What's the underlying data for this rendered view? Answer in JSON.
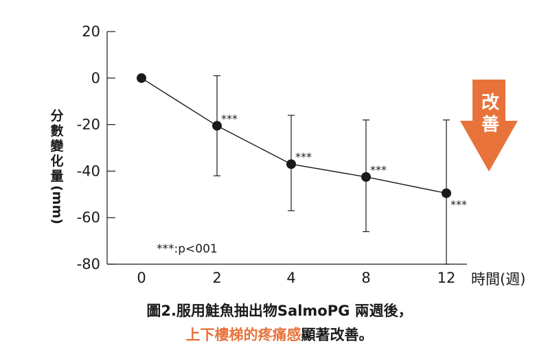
{
  "chart_data": {
    "type": "line",
    "x": [
      "0",
      "2",
      "4",
      "8",
      "12"
    ],
    "series": [
      {
        "values": [
          0,
          -20.5,
          -37,
          -42.5,
          -49.5
        ],
        "error_low": [
          0,
          -42,
          -57,
          -66,
          -80
        ],
        "error_high": [
          0,
          1,
          -16,
          -18,
          -18
        ],
        "annotations": [
          "",
          "***",
          "***",
          "***",
          "***"
        ]
      }
    ],
    "yticks": [
      "20",
      "0",
      "-20",
      "-40",
      "-60",
      "-80"
    ],
    "ylim": [
      -80,
      20
    ],
    "ylabel_chars": [
      "分",
      "數",
      "變",
      "化",
      "量"
    ],
    "ylabel_unit": "(mm)",
    "xlabel": "時間(週)",
    "note": "***:p<001",
    "grid": false,
    "marker_color": "#1a1a1a",
    "arrow": {
      "label_chars": [
        "改",
        "善"
      ],
      "color": "#e8733a"
    }
  },
  "caption": {
    "line1": "圖2.服用鮭魚抽出物SalmoPG 兩週後，",
    "line2_highlight": "上下樓梯的疼痛感",
    "line2_rest": "顯著改善。"
  }
}
